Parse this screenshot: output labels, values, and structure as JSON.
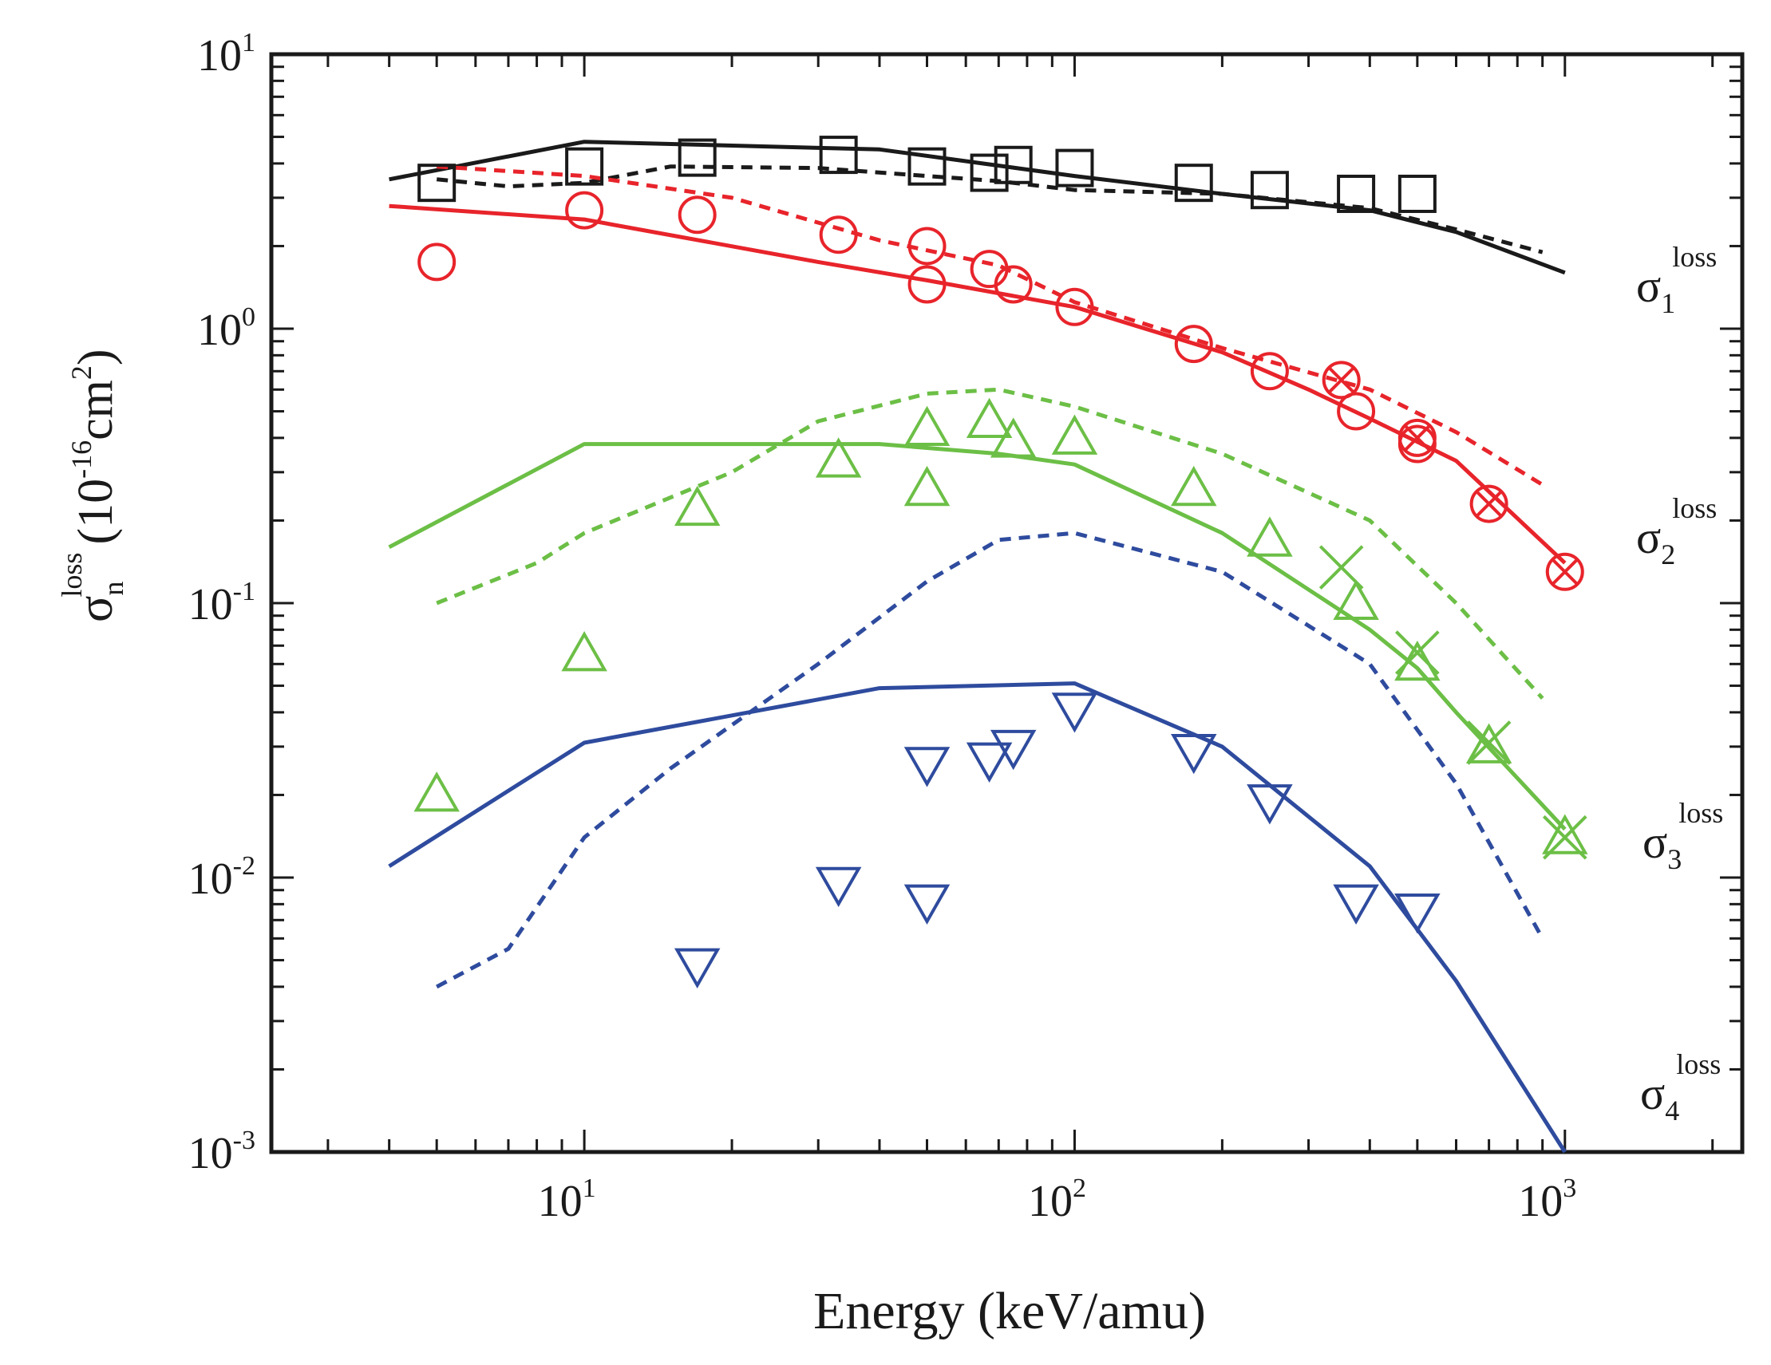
{
  "chart_data": {
    "type": "line",
    "title": "",
    "xlabel": "Energy (keV/amu)",
    "ylabel": {
      "symbol": "σ",
      "subscript": "n",
      "superscript": "loss",
      "units_open": "(10",
      "units_exp": "-16",
      "units_mid": "cm",
      "units_pow": "2",
      "units_close": ")"
    },
    "xscale": "log",
    "yscale": "log",
    "xlim": [
      2.3,
      2300
    ],
    "ylim": [
      0.001,
      10
    ],
    "grid": false,
    "x_ticks": [
      {
        "value": 10,
        "base": "10",
        "exp": "1"
      },
      {
        "value": 100,
        "base": "10",
        "exp": "2"
      },
      {
        "value": 1000,
        "base": "10",
        "exp": "3"
      }
    ],
    "y_ticks": [
      {
        "value": 10,
        "base": "10",
        "exp": "1"
      },
      {
        "value": 1,
        "base": "10",
        "exp": "0"
      },
      {
        "value": 0.1,
        "base": "10",
        "exp": "-1"
      },
      {
        "value": 0.01,
        "base": "10",
        "exp": "-2"
      },
      {
        "value": 0.001,
        "base": "10",
        "exp": "-3"
      }
    ],
    "curve_labels": [
      {
        "symbol": "σ",
        "sub": "1",
        "sup": "loss",
        "color": "#1a1a1a"
      },
      {
        "symbol": "σ",
        "sub": "2",
        "sup": "loss",
        "color": "#1a1a1a"
      },
      {
        "symbol": "σ",
        "sub": "3",
        "sup": "loss",
        "color": "#1a1a1a"
      },
      {
        "symbol": "σ",
        "sub": "4",
        "sup": "loss",
        "color": "#1a1a1a"
      }
    ],
    "series": [
      {
        "name": "sigma1 theory solid",
        "color": "#1a1a1a",
        "style": "solid",
        "x": [
          4,
          10,
          40,
          100,
          200,
          400,
          600,
          1000
        ],
        "y": [
          3.5,
          4.8,
          4.5,
          3.6,
          3.1,
          2.7,
          2.25,
          1.6
        ]
      },
      {
        "name": "sigma1 theory dashed",
        "color": "#1a1a1a",
        "style": "dashed",
        "x": [
          5,
          7,
          10,
          15,
          30,
          50,
          70,
          100,
          200,
          400,
          600,
          900
        ],
        "y": [
          3.5,
          3.3,
          3.4,
          3.9,
          3.85,
          3.6,
          3.45,
          3.2,
          3.1,
          2.75,
          2.3,
          1.9
        ]
      },
      {
        "name": "sigma2 theory solid",
        "color": "#e8242b",
        "style": "solid",
        "x": [
          4,
          10,
          30,
          50,
          100,
          200,
          300,
          400,
          600,
          1000
        ],
        "y": [
          2.8,
          2.5,
          1.75,
          1.5,
          1.2,
          0.82,
          0.6,
          0.47,
          0.33,
          0.14
        ]
      },
      {
        "name": "sigma2 theory dashed",
        "color": "#e8242b",
        "style": "dashed",
        "x": [
          5,
          10,
          20,
          40,
          70,
          100,
          200,
          400,
          600,
          900
        ],
        "y": [
          3.9,
          3.6,
          3.0,
          2.1,
          1.7,
          1.25,
          0.85,
          0.6,
          0.42,
          0.27
        ]
      },
      {
        "name": "sigma3 theory solid",
        "color": "#6cbf46",
        "style": "solid",
        "x": [
          4,
          10,
          40,
          70,
          100,
          200,
          400,
          500,
          600,
          1000
        ],
        "y": [
          0.16,
          0.38,
          0.38,
          0.35,
          0.32,
          0.18,
          0.08,
          0.058,
          0.04,
          0.015
        ]
      },
      {
        "name": "sigma3 theory dashed",
        "color": "#6cbf46",
        "style": "dashed",
        "x": [
          5,
          8,
          10,
          20,
          30,
          50,
          70,
          100,
          200,
          400,
          600,
          900
        ],
        "y": [
          0.1,
          0.14,
          0.18,
          0.3,
          0.46,
          0.58,
          0.6,
          0.52,
          0.35,
          0.2,
          0.1,
          0.045
        ]
      },
      {
        "name": "sigma4 theory solid",
        "color": "#2e4b9e",
        "style": "solid",
        "x": [
          4,
          10,
          40,
          100,
          200,
          400,
          600,
          1000
        ],
        "y": [
          0.011,
          0.031,
          0.049,
          0.051,
          0.03,
          0.011,
          0.0042,
          0.001
        ]
      },
      {
        "name": "sigma4 theory dashed",
        "color": "#2e4b9e",
        "style": "dashed",
        "x": [
          5,
          7,
          10,
          15,
          30,
          50,
          70,
          100,
          200,
          400,
          600,
          900
        ],
        "y": [
          0.004,
          0.0055,
          0.014,
          0.025,
          0.06,
          0.12,
          0.17,
          0.18,
          0.13,
          0.06,
          0.022,
          0.006
        ]
      }
    ],
    "markers": [
      {
        "name": "sigma1 data",
        "shape": "square",
        "color": "#1a1a1a",
        "x": [
          5,
          10,
          17,
          33,
          50,
          67,
          75,
          100,
          175,
          250,
          375,
          500
        ],
        "y": [
          3.4,
          3.9,
          4.2,
          4.3,
          3.9,
          3.7,
          3.95,
          3.85,
          3.4,
          3.2,
          3.1,
          3.1
        ]
      },
      {
        "name": "sigma2 data",
        "shape": "circle",
        "color": "#e8242b",
        "x": [
          5,
          10,
          17,
          33,
          50,
          50,
          67,
          75,
          100,
          175,
          250,
          375,
          500
        ],
        "y": [
          1.75,
          2.7,
          2.6,
          2.2,
          2.0,
          1.45,
          1.65,
          1.45,
          1.2,
          0.88,
          0.7,
          0.5,
          0.38
        ]
      },
      {
        "name": "sigma2 data crossed",
        "shape": "circle-x",
        "color": "#e8242b",
        "x": [
          350,
          500,
          700,
          1000
        ],
        "y": [
          0.65,
          0.4,
          0.23,
          0.13
        ]
      },
      {
        "name": "sigma3 data",
        "shape": "triangle-up",
        "color": "#6cbf46",
        "x": [
          5,
          10,
          17,
          33,
          50,
          50,
          67,
          75,
          100,
          175,
          250,
          375,
          500,
          700,
          1000
        ],
        "y": [
          0.02,
          0.065,
          0.22,
          0.33,
          0.43,
          0.26,
          0.46,
          0.39,
          0.4,
          0.26,
          0.17,
          0.1,
          0.06,
          0.03,
          0.014
        ]
      },
      {
        "name": "sigma3 data crossed",
        "shape": "x",
        "color": "#6cbf46",
        "x": [
          350,
          500,
          700,
          1000
        ],
        "y": [
          0.135,
          0.066,
          0.031,
          0.014
        ]
      },
      {
        "name": "sigma4 data",
        "shape": "triangle-down",
        "color": "#2e4b9e",
        "x": [
          17,
          33,
          50,
          50,
          67,
          75,
          100,
          175,
          250,
          375,
          500
        ],
        "y": [
          0.0048,
          0.0095,
          0.0082,
          0.026,
          0.027,
          0.03,
          0.041,
          0.029,
          0.019,
          0.0082,
          0.0076
        ]
      }
    ]
  }
}
